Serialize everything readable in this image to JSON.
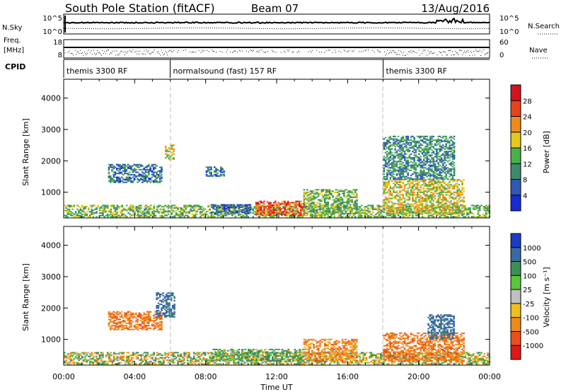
{
  "header": {
    "station": "South Pole Station (fitACF)",
    "beam": "Beam 07",
    "date": "13/Aug/2016"
  },
  "side_labels": {
    "nsky": "N.Sky",
    "nsearch": "N.Search",
    "freq_line1": "Freq.",
    "freq_line2": "[MHz]",
    "nave": "Nave",
    "cpid": "CPID"
  },
  "small_axes": {
    "noise_left_top": "10^5",
    "noise_left_bottom": "10^0",
    "noise_right_top": "10^5",
    "noise_right_bottom": "10^0",
    "freq_left_top": "18",
    "freq_left_bottom": "8",
    "nave_right_top": "60",
    "nave_right_bottom": "0"
  },
  "cpid_segments": [
    {
      "label": "themis 3300 RF",
      "start_hour": 0,
      "end_hour": 6
    },
    {
      "label": "normalsound (fast) 157 RF",
      "start_hour": 6,
      "end_hour": 18
    },
    {
      "label": "themis 3300 RF",
      "start_hour": 18,
      "end_hour": 24
    }
  ],
  "chart_data": [
    {
      "type": "heatmap",
      "panel": "power",
      "xlabel": "Time UT",
      "ylabel": "Slant Range [km]",
      "xlim_hours": [
        0,
        24
      ],
      "ylim": [
        180,
        4600
      ],
      "yticks": [
        1000,
        2000,
        3000,
        4000
      ],
      "xtick_labels": [
        "00:00",
        "04:00",
        "08:00",
        "12:00",
        "16:00",
        "20:00",
        "00:00"
      ],
      "colorbar": {
        "label": "Power [dB]",
        "ticks": [
          "4",
          "8",
          "12",
          "16",
          "20",
          "24",
          "28"
        ],
        "colors": [
          "#1a2bd4",
          "#2f58b8",
          "#3f8a6e",
          "#4ab04a",
          "#e4c81c",
          "#f08a1c",
          "#e8431a",
          "#d4141a"
        ]
      },
      "regions": [
        {
          "t0": 0.0,
          "t1": 24.0,
          "r0": 200,
          "r1": 600,
          "value": 14
        },
        {
          "t0": 2.5,
          "t1": 5.5,
          "r0": 1300,
          "r1": 1900,
          "value": 8
        },
        {
          "t0": 5.7,
          "t1": 6.2,
          "r0": 2000,
          "r1": 2500,
          "value": 18
        },
        {
          "t0": 8.0,
          "t1": 9.0,
          "r0": 1500,
          "r1": 1800,
          "value": 8
        },
        {
          "t0": 8.3,
          "t1": 10.5,
          "r0": 300,
          "r1": 600,
          "value": 6
        },
        {
          "t0": 10.8,
          "t1": 13.5,
          "r0": 250,
          "r1": 700,
          "value": 26
        },
        {
          "t0": 13.5,
          "t1": 16.5,
          "r0": 300,
          "r1": 1100,
          "value": 14
        },
        {
          "t0": 18.0,
          "t1": 22.5,
          "r0": 300,
          "r1": 1400,
          "value": 18
        },
        {
          "t0": 18.0,
          "t1": 22.0,
          "r0": 1400,
          "r1": 2800,
          "value": 10
        }
      ]
    },
    {
      "type": "heatmap",
      "panel": "velocity",
      "xlabel": "Time UT",
      "ylabel": "Slant Range [km]",
      "xlim_hours": [
        0,
        24
      ],
      "ylim": [
        180,
        4600
      ],
      "yticks": [
        1000,
        2000,
        3000,
        4000
      ],
      "xtick_labels": [
        "00:00",
        "04:00",
        "08:00",
        "12:00",
        "16:00",
        "20:00",
        "00:00"
      ],
      "colorbar": {
        "label": "Velocity [m s⁻¹]",
        "ticks": [
          "1000",
          "500",
          "100",
          "25",
          "-25",
          "-100",
          "-500",
          "-1000"
        ],
        "colors": [
          "#1a3dc8",
          "#3a6aa6",
          "#3c8f55",
          "#58c83a",
          "#c0c0c0",
          "#f0c01a",
          "#f08a1c",
          "#ec5018",
          "#e01818"
        ]
      },
      "regions": [
        {
          "t0": 0.0,
          "t1": 24.0,
          "r0": 200,
          "r1": 600,
          "value": 0
        },
        {
          "t0": 2.5,
          "t1": 5.5,
          "r0": 1300,
          "r1": 1900,
          "value": -400
        },
        {
          "t0": 5.2,
          "t1": 6.2,
          "r0": 1700,
          "r1": 2500,
          "value": 700
        },
        {
          "t0": 8.3,
          "t1": 13.5,
          "r0": 300,
          "r1": 700,
          "value": 200
        },
        {
          "t0": 13.5,
          "t1": 16.5,
          "r0": 300,
          "r1": 1000,
          "value": -300
        },
        {
          "t0": 18.0,
          "t1": 22.5,
          "r0": 300,
          "r1": 1200,
          "value": -400
        },
        {
          "t0": 20.5,
          "t1": 22.0,
          "r0": 1000,
          "r1": 1800,
          "value": 700
        }
      ]
    }
  ]
}
